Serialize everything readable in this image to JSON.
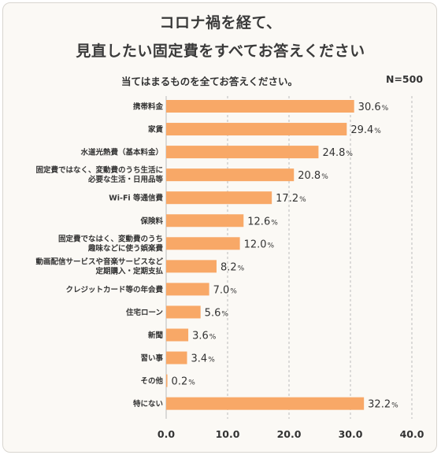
{
  "title_line1": "コロナ禍を経て、",
  "title_line2": "見直したい固定費をすべてお答えください",
  "subtitle": "当てはまるものを全てお答えください。",
  "sample_size": "N=500",
  "colors": {
    "bar": "#f8a867",
    "grid": "#bbbbbb"
  },
  "chart_data": {
    "type": "bar",
    "orientation": "horizontal",
    "title": "コロナ禍を経て、見直したい固定費をすべてお答えください",
    "subtitle": "当てはまるものを全てお答えください。",
    "categories": [
      [
        "携帯料金"
      ],
      [
        "家賃"
      ],
      [
        "水道光熱費（基本料金）"
      ],
      [
        "固定費ではなく、変動費のうち生活に",
        "必要な生活・日用品等"
      ],
      [
        "Wi-Fi 等通信費"
      ],
      [
        "保険料"
      ],
      [
        "固定費でなはく、変動費のうち",
        "趣味などに使う娯楽費"
      ],
      [
        "動画配信サービスや音楽サービスなど",
        "定期購入・定期支払"
      ],
      [
        "クレジットカード等の年会費"
      ],
      [
        "住宅ローン"
      ],
      [
        "新聞"
      ],
      [
        "習い事"
      ],
      [
        "その他"
      ],
      [
        "特にない"
      ]
    ],
    "values": [
      30.6,
      29.4,
      24.8,
      20.8,
      17.2,
      12.6,
      12.0,
      8.2,
      7.0,
      5.6,
      3.6,
      3.4,
      0.2,
      32.2
    ],
    "value_suffix": "%",
    "xlim": [
      0,
      40
    ],
    "xticks": [
      "0.0",
      "10.0",
      "20.0",
      "30.0",
      "40.0"
    ],
    "grid": true
  }
}
